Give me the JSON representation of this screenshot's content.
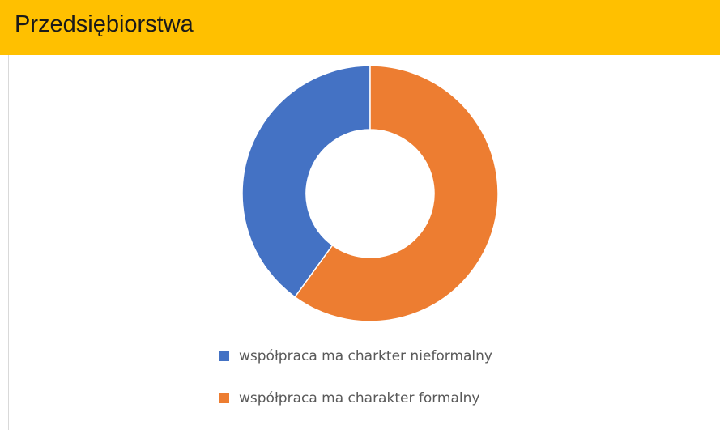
{
  "header": {
    "title": "Przedsiębiorstwa"
  },
  "chart_data": {
    "type": "donut",
    "direction": "counterclockwise",
    "categories": [
      "współpraca ma charkter nieformalny",
      "współpraca ma charakter formalny"
    ],
    "values": [
      40,
      60
    ],
    "colors": [
      "#4472C4",
      "#ED7D31"
    ],
    "legend": "bottom"
  }
}
